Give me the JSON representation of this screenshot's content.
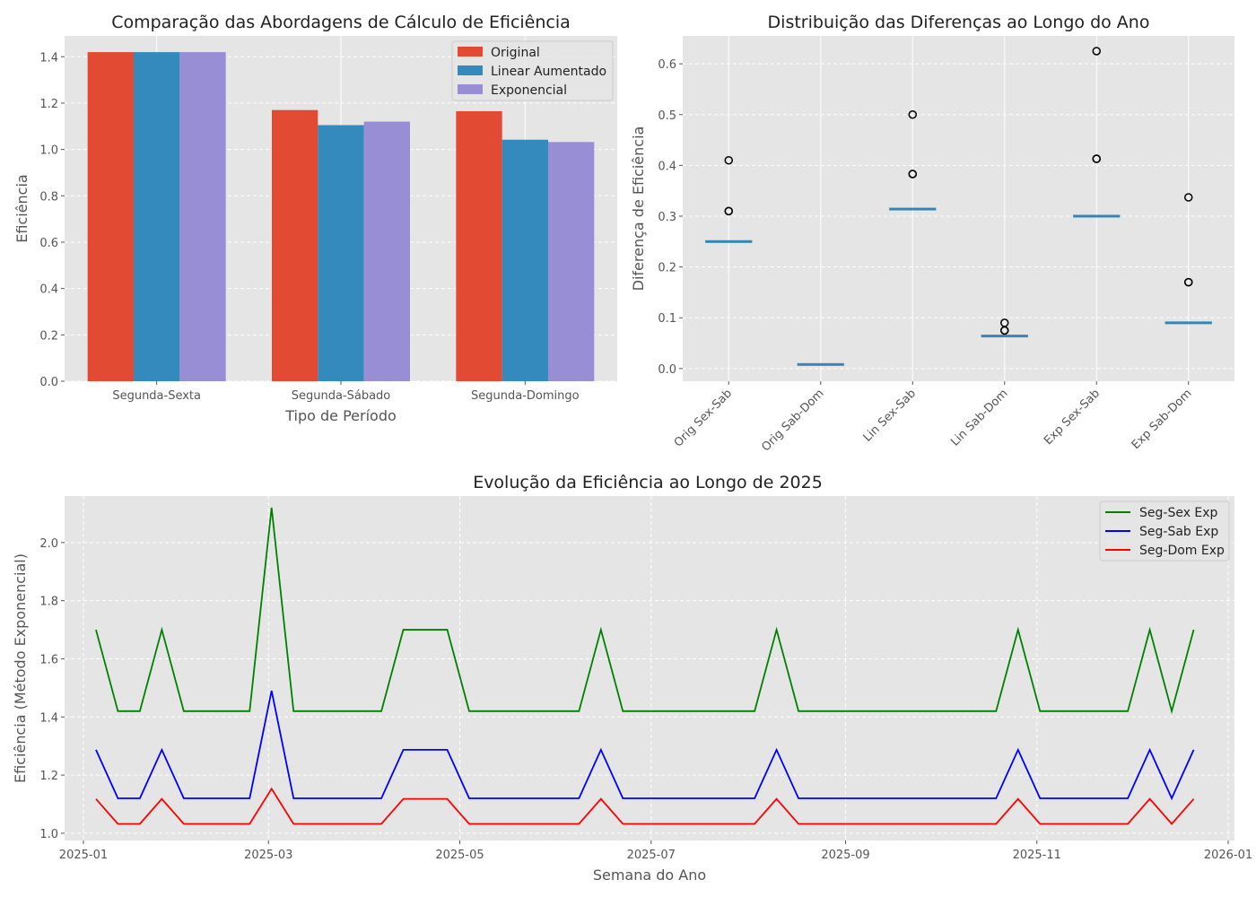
{
  "chart_data": [
    {
      "type": "bar",
      "title": "Comparação das Abordagens de Cálculo de Eficiência",
      "xlabel": "Tipo de Período",
      "ylabel": "Eficiência",
      "categories": [
        "Segunda-Sexta",
        "Segunda-Sábado",
        "Segunda-Domingo"
      ],
      "series": [
        {
          "name": "Original",
          "values": [
            1.42,
            1.17,
            1.165
          ],
          "color": "#E24A33"
        },
        {
          "name": "Linear Aumentado",
          "values": [
            1.42,
            1.105,
            1.042
          ],
          "color": "#348ABD"
        },
        {
          "name": "Exponencial",
          "values": [
            1.42,
            1.12,
            1.032
          ],
          "color": "#988ED5"
        }
      ],
      "ylim": [
        0,
        1.49
      ],
      "yticks": [
        0.0,
        0.2,
        0.4,
        0.6,
        0.8,
        1.0,
        1.2,
        1.4
      ],
      "ytick_labels": [
        "0.0",
        "0.2",
        "0.4",
        "0.6",
        "0.8",
        "1.0",
        "1.2",
        "1.4"
      ],
      "grid": true,
      "legend_position": "top-right"
    },
    {
      "type": "box",
      "title": "Distribuição das Diferenças ao Longo do Ano",
      "xlabel": "",
      "ylabel": "Diferença de Eficiência",
      "categories": [
        "Orig Sex-Sab",
        "Orig Sab-Dom",
        "Lin Sex-Sab",
        "Lin Sab-Dom",
        "Exp Sex-Sab",
        "Exp Sab-Dom"
      ],
      "boxes": [
        {
          "median": 0.25,
          "q1": 0.25,
          "q3": 0.25,
          "outliers": [
            0.31,
            0.31,
            0.41
          ]
        },
        {
          "median": 0.008,
          "q1": 0.008,
          "q3": 0.008,
          "outliers": []
        },
        {
          "median": 0.314,
          "q1": 0.314,
          "q3": 0.314,
          "outliers": [
            0.383,
            0.383,
            0.5
          ]
        },
        {
          "median": 0.064,
          "q1": 0.064,
          "q3": 0.064,
          "outliers": [
            0.075,
            0.075,
            0.09
          ]
        },
        {
          "median": 0.3,
          "q1": 0.3,
          "q3": 0.3,
          "outliers": [
            0.413,
            0.413,
            0.625
          ]
        },
        {
          "median": 0.09,
          "q1": 0.09,
          "q3": 0.09,
          "outliers": [
            0.17,
            0.17,
            0.337
          ]
        }
      ],
      "ylim": [
        -0.025,
        0.655
      ],
      "yticks": [
        0.0,
        0.1,
        0.2,
        0.3,
        0.4,
        0.5,
        0.6
      ],
      "ytick_labels": [
        "0.0",
        "0.1",
        "0.2",
        "0.3",
        "0.4",
        "0.5",
        "0.6"
      ],
      "box_color": "#348ABD",
      "grid": true
    },
    {
      "type": "line",
      "title": "Evolução da Eficiência ao Longo de 2025",
      "xlabel": "Semana do Ano",
      "ylabel": "Eficiência (Método Exponencial)",
      "x": [
        "2025-01-05",
        "2025-01-12",
        "2025-01-19",
        "2025-01-26",
        "2025-02-02",
        "2025-02-09",
        "2025-02-16",
        "2025-02-23",
        "2025-03-02",
        "2025-03-09",
        "2025-03-16",
        "2025-03-23",
        "2025-03-30",
        "2025-04-06",
        "2025-04-13",
        "2025-04-20",
        "2025-04-27",
        "2025-05-04",
        "2025-05-11",
        "2025-05-18",
        "2025-05-25",
        "2025-06-01",
        "2025-06-08",
        "2025-06-15",
        "2025-06-22",
        "2025-06-29",
        "2025-07-06",
        "2025-07-13",
        "2025-07-20",
        "2025-07-27",
        "2025-08-03",
        "2025-08-10",
        "2025-08-17",
        "2025-08-24",
        "2025-08-31",
        "2025-09-07",
        "2025-09-14",
        "2025-09-21",
        "2025-09-28",
        "2025-10-05",
        "2025-10-12",
        "2025-10-19",
        "2025-10-26",
        "2025-11-02",
        "2025-11-09",
        "2025-11-16",
        "2025-11-23",
        "2025-11-30",
        "2025-12-07",
        "2025-12-14",
        "2025-12-21"
      ],
      "series": [
        {
          "name": "Seg-Sex Exp",
          "color": "#008000",
          "values": [
            1.7,
            1.42,
            1.42,
            1.7,
            1.42,
            1.42,
            1.42,
            1.42,
            2.12,
            1.42,
            1.42,
            1.42,
            1.42,
            1.42,
            1.7,
            1.7,
            1.7,
            1.42,
            1.42,
            1.42,
            1.42,
            1.42,
            1.42,
            1.7,
            1.42,
            1.42,
            1.42,
            1.42,
            1.42,
            1.42,
            1.42,
            1.7,
            1.42,
            1.42,
            1.42,
            1.42,
            1.42,
            1.42,
            1.42,
            1.42,
            1.42,
            1.42,
            1.7,
            1.42,
            1.42,
            1.42,
            1.42,
            1.42,
            1.7,
            1.42,
            1.7
          ]
        },
        {
          "name": "Seg-Sab Exp",
          "color": "#0000ff",
          "values": [
            1.287,
            1.12,
            1.12,
            1.287,
            1.12,
            1.12,
            1.12,
            1.12,
            1.49,
            1.12,
            1.12,
            1.12,
            1.12,
            1.12,
            1.287,
            1.287,
            1.287,
            1.12,
            1.12,
            1.12,
            1.12,
            1.12,
            1.12,
            1.287,
            1.12,
            1.12,
            1.12,
            1.12,
            1.12,
            1.12,
            1.12,
            1.287,
            1.12,
            1.12,
            1.12,
            1.12,
            1.12,
            1.12,
            1.12,
            1.12,
            1.12,
            1.12,
            1.287,
            1.12,
            1.12,
            1.12,
            1.12,
            1.12,
            1.287,
            1.12,
            1.287
          ]
        },
        {
          "name": "Seg-Dom Exp",
          "color": "#ff0000",
          "values": [
            1.118,
            1.032,
            1.032,
            1.118,
            1.032,
            1.032,
            1.032,
            1.032,
            1.153,
            1.032,
            1.032,
            1.032,
            1.032,
            1.032,
            1.118,
            1.118,
            1.118,
            1.032,
            1.032,
            1.032,
            1.032,
            1.032,
            1.032,
            1.118,
            1.032,
            1.032,
            1.032,
            1.032,
            1.032,
            1.032,
            1.032,
            1.118,
            1.032,
            1.032,
            1.032,
            1.032,
            1.032,
            1.032,
            1.032,
            1.032,
            1.032,
            1.032,
            1.118,
            1.032,
            1.032,
            1.032,
            1.032,
            1.032,
            1.118,
            1.032,
            1.118
          ]
        }
      ],
      "xlim": [
        "2024-12-26",
        "2026-01-03"
      ],
      "xticks": [
        "2025-01-01",
        "2025-03-01",
        "2025-05-01",
        "2025-07-01",
        "2025-09-01",
        "2025-11-01",
        "2026-01-01"
      ],
      "xtick_labels": [
        "2025-01",
        "2025-03",
        "2025-05",
        "2025-07",
        "2025-09",
        "2025-11",
        "2026-01"
      ],
      "ylim": [
        0.975,
        2.16
      ],
      "yticks": [
        1.0,
        1.2,
        1.4,
        1.6,
        1.8,
        2.0
      ],
      "ytick_labels": [
        "1.0",
        "1.2",
        "1.4",
        "1.6",
        "1.8",
        "2.0"
      ],
      "grid": true,
      "legend_position": "top-right"
    }
  ]
}
